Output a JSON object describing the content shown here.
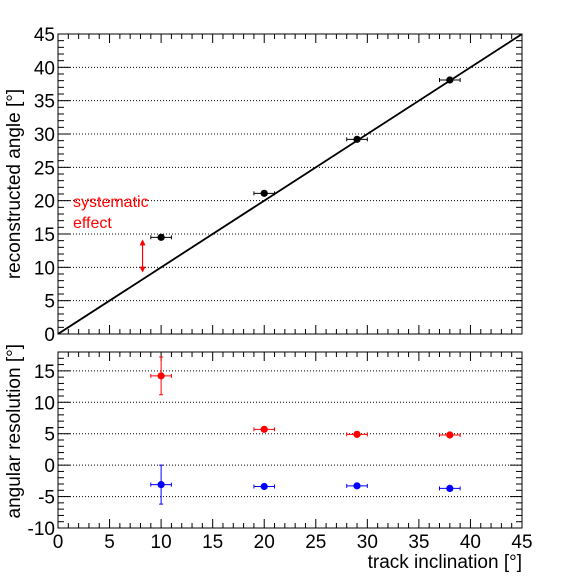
{
  "chart_data": [
    {
      "type": "scatter",
      "panel": "top",
      "title": "",
      "xlabel": "",
      "ylabel": "reconstructed angle [°]",
      "xlim": [
        0,
        45
      ],
      "ylim": [
        0,
        45
      ],
      "yticks": [
        "0",
        "5",
        "10",
        "15",
        "20",
        "25",
        "30",
        "35",
        "40",
        "45"
      ],
      "grid": "horizontal dotted",
      "series": [
        {
          "color": "#000000",
          "points": [
            {
              "x": 10,
              "y": 14.5,
              "xerr": 1.0,
              "yerr": 0.2
            },
            {
              "x": 20,
              "y": 21.1,
              "xerr": 1.0,
              "yerr": 0.2
            },
            {
              "x": 29,
              "y": 29.2,
              "xerr": 1.0,
              "yerr": 0.2
            },
            {
              "x": 38,
              "y": 38.1,
              "xerr": 1.0,
              "yerr": 0.2
            }
          ]
        }
      ],
      "reference_line": {
        "from": [
          0,
          0
        ],
        "to": [
          45,
          45
        ],
        "color": "#000000"
      },
      "annotation": {
        "lines": [
          "systematic",
          "effect"
        ],
        "color": "#ff0000",
        "arrow": {
          "x": 8.2,
          "y_from": 9.2,
          "y_to": 14.2
        }
      }
    },
    {
      "type": "scatter",
      "panel": "bottom",
      "title": "",
      "xlabel": "track inclination [°]",
      "ylabel": "angular resolution [°]",
      "xlim": [
        0,
        45
      ],
      "ylim": [
        -10,
        18
      ],
      "xticks": [
        "0",
        "5",
        "10",
        "15",
        "20",
        "25",
        "30",
        "35",
        "40",
        "45"
      ],
      "yticks": [
        "-10",
        "-5",
        "0",
        "5",
        "10",
        "15"
      ],
      "grid": "horizontal dotted",
      "series": [
        {
          "color": "#ff0000",
          "points": [
            {
              "x": 10,
              "y": 14.2,
              "xerr": 1.0,
              "yerr": 3.0
            },
            {
              "x": 20,
              "y": 5.7,
              "xerr": 1.0,
              "yerr": 0.3
            },
            {
              "x": 29,
              "y": 4.9,
              "xerr": 1.0,
              "yerr": 0.2
            },
            {
              "x": 38,
              "y": 4.8,
              "xerr": 1.0,
              "yerr": 0.2
            }
          ]
        },
        {
          "color": "#0000ff",
          "points": [
            {
              "x": 10,
              "y": -3.1,
              "xerr": 1.0,
              "yerr": 3.1
            },
            {
              "x": 20,
              "y": -3.4,
              "xerr": 1.0,
              "yerr": 0.2
            },
            {
              "x": 29,
              "y": -3.3,
              "xerr": 1.0,
              "yerr": 0.2
            },
            {
              "x": 38,
              "y": -3.7,
              "xerr": 1.0,
              "yerr": 0.2
            }
          ]
        }
      ]
    }
  ]
}
